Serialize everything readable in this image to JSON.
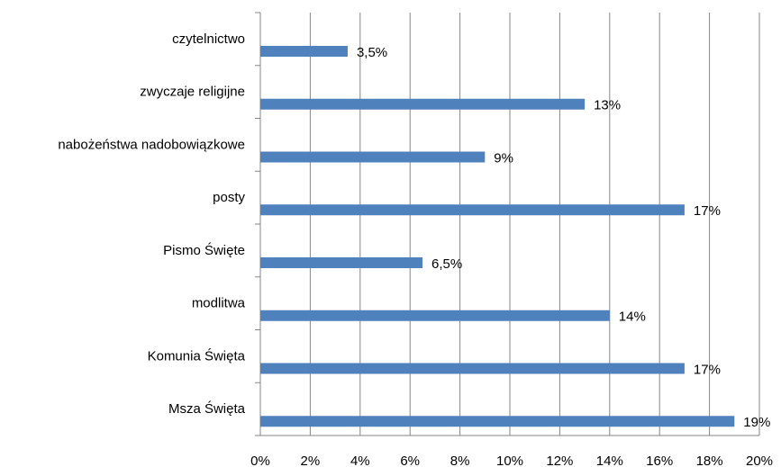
{
  "chart_data": {
    "type": "bar",
    "orientation": "horizontal",
    "categories": [
      "czytelnictwo",
      "zwyczaje religijne",
      "nabożeństwa nadobowiązkowe",
      "posty",
      "Pismo Święte",
      "modlitwa",
      "Komunia Święta",
      "Msza Święta"
    ],
    "values": [
      3.5,
      13,
      9,
      17,
      6.5,
      14,
      17,
      19
    ],
    "value_labels": [
      "3,5%",
      "13%",
      "9%",
      "17%",
      "6,5%",
      "14%",
      "17%",
      "19%"
    ],
    "color": "#4f81bd",
    "xlim": [
      0,
      20
    ],
    "xticks": [
      {
        "value": 0,
        "label": "0%"
      },
      {
        "value": 2,
        "label": "2%"
      },
      {
        "value": 4,
        "label": "4%"
      },
      {
        "value": 6,
        "label": "6%"
      },
      {
        "value": 8,
        "label": "8%"
      },
      {
        "value": 10,
        "label": "10%"
      },
      {
        "value": 12,
        "label": "12%"
      },
      {
        "value": 14,
        "label": "14%"
      },
      {
        "value": 16,
        "label": "16%"
      },
      {
        "value": 18,
        "label": "18%"
      },
      {
        "value": 20,
        "label": "20%"
      }
    ],
    "grid": true
  }
}
